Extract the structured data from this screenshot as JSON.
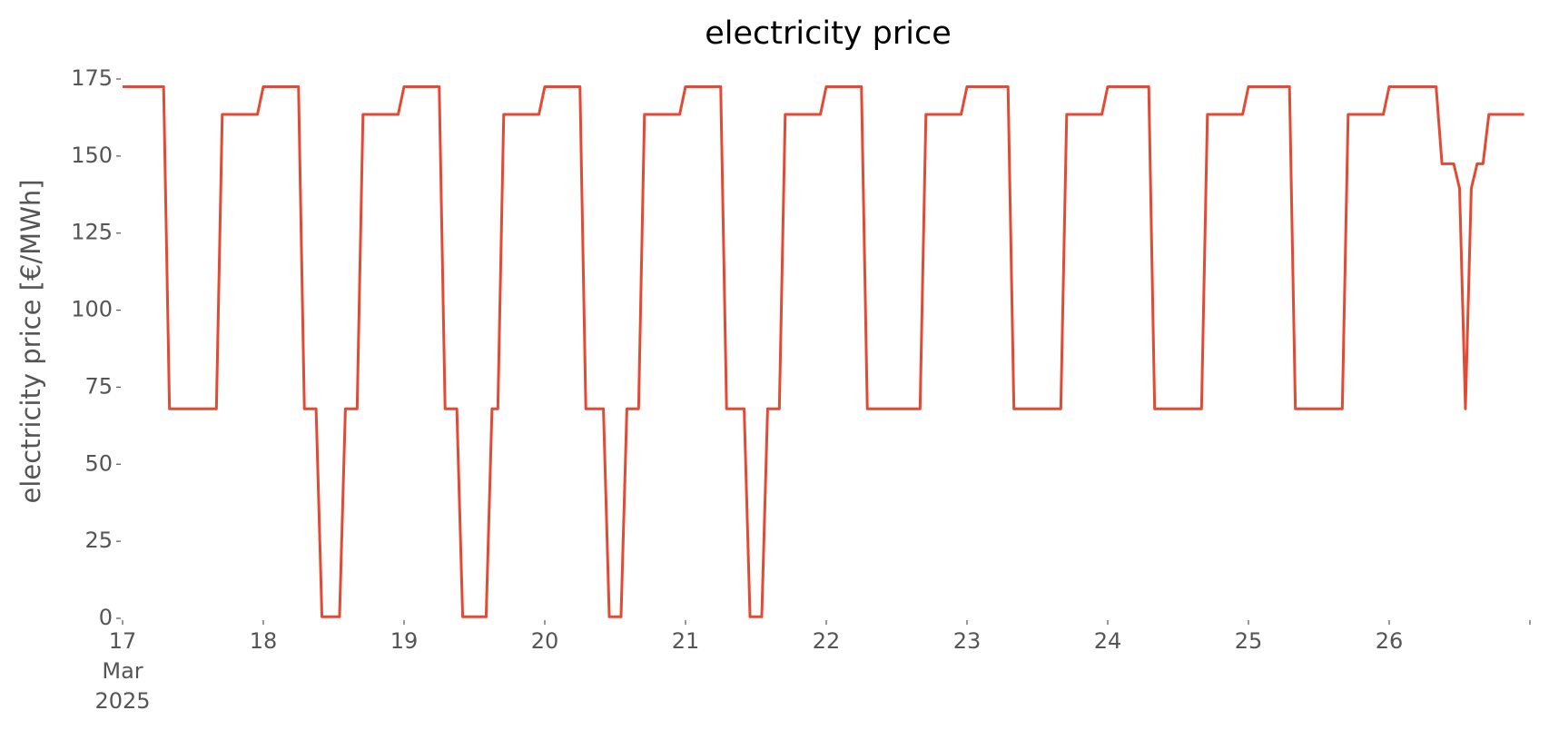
{
  "chart_data": {
    "type": "line",
    "title": "electricity price",
    "ylabel": "electricity price [€/MWh]",
    "x": [
      0,
      1,
      2,
      3,
      4,
      5,
      6,
      7,
      8,
      9,
      10,
      11,
      12,
      13,
      14,
      15,
      16,
      17,
      18,
      19,
      20,
      21,
      22,
      23,
      24,
      25,
      26,
      27,
      28,
      29,
      30,
      31,
      32,
      33,
      34,
      35,
      36,
      37,
      38,
      39,
      40,
      41,
      42,
      43,
      44,
      45,
      46,
      47,
      48,
      49,
      50,
      51,
      52,
      53,
      54,
      55,
      56,
      57,
      58,
      59,
      60,
      61,
      62,
      63,
      64,
      65,
      66,
      67,
      68,
      69,
      70,
      71,
      72,
      73,
      74,
      75,
      76,
      77,
      78,
      79,
      80,
      81,
      82,
      83,
      84,
      85,
      86,
      87,
      88,
      89,
      90,
      91,
      92,
      93,
      94,
      95,
      96,
      97,
      98,
      99,
      100,
      101,
      102,
      103,
      104,
      105,
      106,
      107,
      108,
      109,
      110,
      111,
      112,
      113,
      114,
      115,
      116,
      117,
      118,
      119,
      120,
      121,
      122,
      123,
      124,
      125,
      126,
      127,
      128,
      129,
      130,
      131,
      132,
      133,
      134,
      135,
      136,
      137,
      138,
      139,
      140,
      141,
      142,
      143,
      144,
      145,
      146,
      147,
      148,
      149,
      150,
      151,
      152,
      153,
      154,
      155,
      156,
      157,
      158,
      159,
      160,
      161,
      162,
      163,
      164,
      165,
      166,
      167,
      168,
      169,
      170,
      171,
      172,
      173,
      174,
      175,
      176,
      177,
      178,
      179,
      180,
      181,
      182,
      183,
      184,
      185,
      186,
      187,
      188,
      189,
      190,
      191,
      192,
      193,
      194,
      195,
      196,
      197,
      198,
      199,
      200,
      201,
      202,
      203,
      204,
      205,
      206,
      207,
      208,
      209,
      210,
      211,
      212,
      213,
      214,
      215,
      216,
      217,
      218,
      219,
      220,
      221,
      222,
      223,
      224,
      225,
      226,
      227,
      228,
      229,
      230,
      231,
      232,
      233,
      234,
      235,
      236,
      237,
      238,
      239
    ],
    "values": [
      172.5,
      172.5,
      172.5,
      172.5,
      172.5,
      172.5,
      172.5,
      172.5,
      68,
      68,
      68,
      68,
      68,
      68,
      68,
      68,
      68,
      163.5,
      163.5,
      163.5,
      163.5,
      163.5,
      163.5,
      163.5,
      172.5,
      172.5,
      172.5,
      172.5,
      172.5,
      172.5,
      172.5,
      68,
      68,
      68,
      0.5,
      0.5,
      0.5,
      0.5,
      68,
      68,
      68,
      163.5,
      163.5,
      163.5,
      163.5,
      163.5,
      163.5,
      163.5,
      172.5,
      172.5,
      172.5,
      172.5,
      172.5,
      172.5,
      172.5,
      68,
      68,
      68,
      0.5,
      0.5,
      0.5,
      0.5,
      0.5,
      68,
      68,
      163.5,
      163.5,
      163.5,
      163.5,
      163.5,
      163.5,
      163.5,
      172.5,
      172.5,
      172.5,
      172.5,
      172.5,
      172.5,
      172.5,
      68,
      68,
      68,
      68,
      0.5,
      0.5,
      0.5,
      68,
      68,
      68,
      163.5,
      163.5,
      163.5,
      163.5,
      163.5,
      163.5,
      163.5,
      172.5,
      172.5,
      172.5,
      172.5,
      172.5,
      172.5,
      172.5,
      68,
      68,
      68,
      68,
      0.5,
      0.5,
      0.5,
      68,
      68,
      68,
      163.5,
      163.5,
      163.5,
      163.5,
      163.5,
      163.5,
      163.5,
      172.5,
      172.5,
      172.5,
      172.5,
      172.5,
      172.5,
      172.5,
      68,
      68,
      68,
      68,
      68,
      68,
      68,
      68,
      68,
      68,
      163.5,
      163.5,
      163.5,
      163.5,
      163.5,
      163.5,
      163.5,
      172.5,
      172.5,
      172.5,
      172.5,
      172.5,
      172.5,
      172.5,
      172.5,
      68,
      68,
      68,
      68,
      68,
      68,
      68,
      68,
      68,
      163.5,
      163.5,
      163.5,
      163.5,
      163.5,
      163.5,
      163.5,
      172.5,
      172.5,
      172.5,
      172.5,
      172.5,
      172.5,
      172.5,
      172.5,
      68,
      68,
      68,
      68,
      68,
      68,
      68,
      68,
      68,
      163.5,
      163.5,
      163.5,
      163.5,
      163.5,
      163.5,
      163.5,
      172.5,
      172.5,
      172.5,
      172.5,
      172.5,
      172.5,
      172.5,
      172.5,
      68,
      68,
      68,
      68,
      68,
      68,
      68,
      68,
      68,
      163.5,
      163.5,
      163.5,
      163.5,
      163.5,
      163.5,
      163.5,
      172.5,
      172.5,
      172.5,
      172.5,
      172.5,
      172.5,
      172.5,
      172.5,
      172.5,
      147.5,
      147.5,
      147.5,
      139.5,
      68,
      139.5,
      147.5,
      147.5,
      163.5,
      163.5,
      163.5,
      163.5,
      163.5,
      163.5,
      163.5
    ],
    "color": "#e24a33",
    "xlim": [
      0,
      240
    ],
    "xticks": [
      {
        "value": 0,
        "label": "17\nMar\n2025"
      },
      {
        "value": 24,
        "label": "18"
      },
      {
        "value": 48,
        "label": "19"
      },
      {
        "value": 72,
        "label": "20"
      },
      {
        "value": 96,
        "label": "21"
      },
      {
        "value": 120,
        "label": "22"
      },
      {
        "value": 144,
        "label": "23"
      },
      {
        "value": 168,
        "label": "24"
      },
      {
        "value": 192,
        "label": "25"
      },
      {
        "value": 216,
        "label": "26"
      },
      {
        "value": 240,
        "label": null
      }
    ],
    "ylim": [
      0,
      175
    ],
    "yticks": [
      0,
      25,
      50,
      75,
      100,
      125,
      150,
      175
    ],
    "grid": false
  }
}
